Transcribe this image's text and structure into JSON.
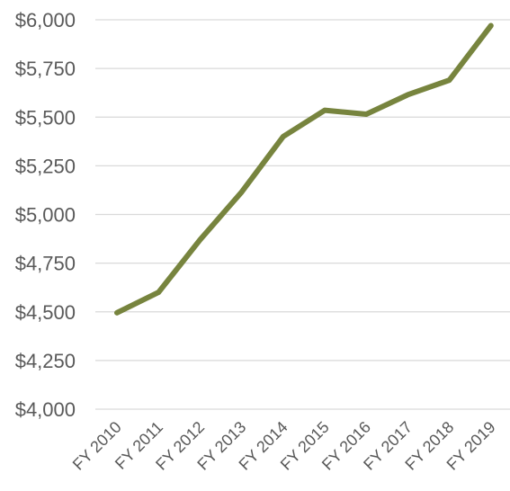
{
  "chart_data": {
    "type": "line",
    "title": "",
    "xlabel": "",
    "ylabel": "",
    "categories": [
      "FY 2010",
      "FY 2011",
      "FY 2012",
      "FY 2013",
      "FY 2014",
      "FY 2015",
      "FY 2016",
      "FY 2017",
      "FY 2018",
      "FY 2019"
    ],
    "values": [
      4495,
      4600,
      4870,
      5115,
      5400,
      5535,
      5515,
      5615,
      5690,
      5970
    ],
    "ylim": [
      4000,
      6000
    ],
    "yticks": [
      4000,
      4250,
      4500,
      4750,
      5000,
      5250,
      5500,
      5750,
      6000
    ],
    "ytick_labels": [
      "$4,000",
      "$4,250",
      "$4,500",
      "$4,750",
      "$5,000",
      "$5,250",
      "$5,500",
      "$5,750",
      "$6,000"
    ],
    "grid": true,
    "legend": "none",
    "line_color": "#77843e",
    "grid_color": "#d9d9d9",
    "text_color": "#595959"
  }
}
